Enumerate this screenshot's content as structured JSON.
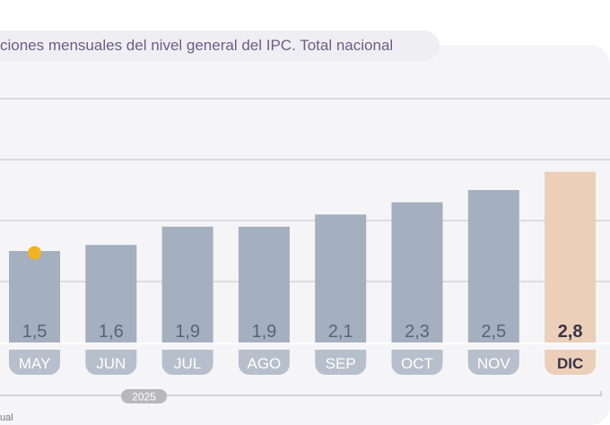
{
  "title": "ciones mensuales del nivel general del IPC. Total nacional",
  "footer_text": "ual",
  "chart_data": {
    "type": "bar",
    "categories": [
      "MAY",
      "JUN",
      "JUL",
      "AGO",
      "SEP",
      "OCT",
      "NOV",
      "DIC"
    ],
    "values": [
      1.5,
      1.6,
      1.9,
      1.9,
      2.1,
      2.3,
      2.5,
      2.8
    ],
    "value_labels": [
      "1,5",
      "1,6",
      "1,9",
      "1,9",
      "2,1",
      "2,3",
      "2,5",
      "2,8"
    ],
    "year_label": "2025",
    "ylim": [
      0,
      4
    ],
    "grid": true,
    "marker_on": "MAY",
    "colors": {
      "bar": "#a4afbf",
      "highlight_bar": "#ebcfb9",
      "marker": "#f0b323",
      "grid": "#d4d4d8",
      "label": "#5a6478",
      "highlight_label": "#3b3347"
    }
  }
}
